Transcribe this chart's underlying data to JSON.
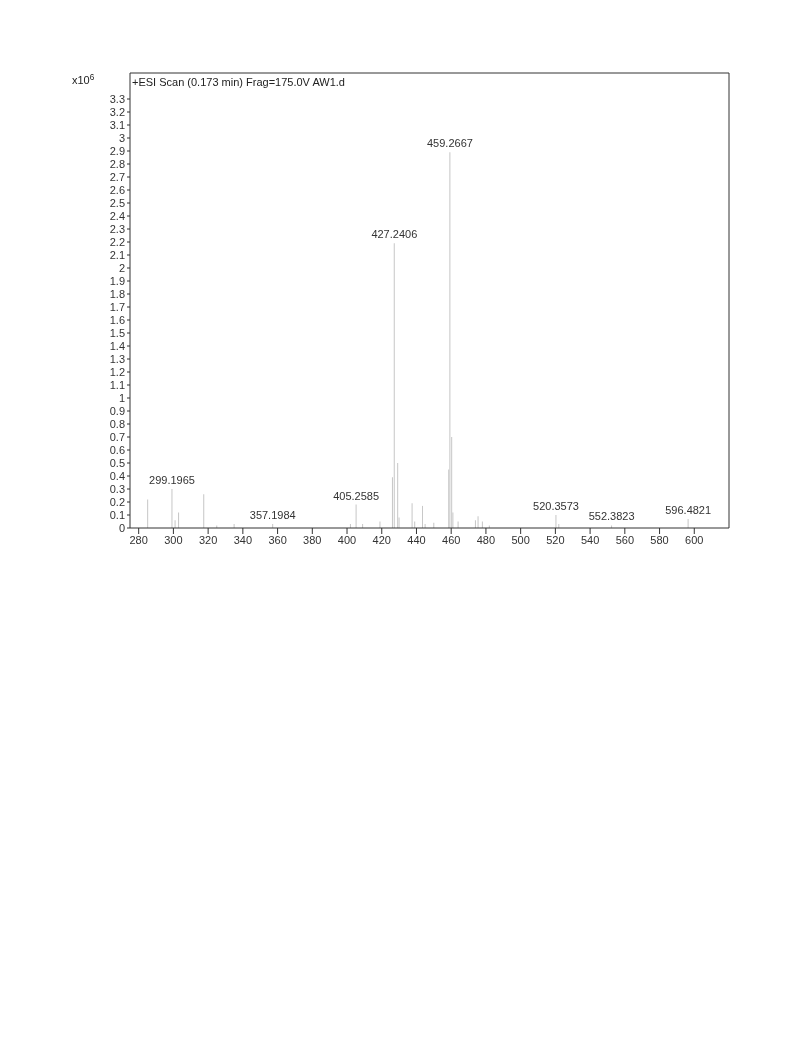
{
  "chart_data": {
    "type": "bar",
    "title": "+ESI Scan (0.173 min) Frag=175.0V AW1.d",
    "ylabel": "x10$^{6}$",
    "x": [
      285.2,
      299.1965,
      301,
      303,
      317.5,
      325,
      335,
      357.1984,
      402,
      405.2585,
      409,
      419,
      426.2,
      427.2406,
      429.2,
      430,
      437.5,
      439,
      443.5,
      445,
      450,
      458.6,
      459.2667,
      460.3,
      461,
      464,
      474,
      475.5,
      478,
      482,
      520.3573,
      522,
      552.3823,
      596.4821
    ],
    "values": [
      0.22,
      0.3,
      0.06,
      0.12,
      0.26,
      0.02,
      0.03,
      0.03,
      0.03,
      0.18,
      0.03,
      0.05,
      0.39,
      2.19,
      0.5,
      0.08,
      0.19,
      0.05,
      0.17,
      0.03,
      0.04,
      0.45,
      2.89,
      0.7,
      0.12,
      0.05,
      0.06,
      0.09,
      0.05,
      0.02,
      0.1,
      0.03,
      0.02,
      0.07
    ],
    "annotations": [
      {
        "text": "299.1965",
        "x": 299.1965,
        "y": 0.3
      },
      {
        "text": "357.1984",
        "x": 357.1984,
        "y": 0.03
      },
      {
        "text": "405.2585",
        "x": 405.2585,
        "y": 0.18
      },
      {
        "text": "427.2406",
        "x": 427.2406,
        "y": 2.19
      },
      {
        "text": "459.2667",
        "x": 459.2667,
        "y": 2.89
      },
      {
        "text": "520.3573",
        "x": 520.3573,
        "y": 0.1
      },
      {
        "text": "552.3823",
        "x": 552.3823,
        "y": 0.02
      },
      {
        "text": "596.4821",
        "x": 596.4821,
        "y": 0.07
      }
    ],
    "color": "#c8c8c8",
    "xlim": [
      275,
      620
    ],
    "xticks": [
      280,
      300,
      320,
      340,
      360,
      380,
      400,
      420,
      440,
      460,
      480,
      500,
      520,
      540,
      560,
      580,
      600
    ],
    "ylim": [
      0,
      3.5
    ],
    "yticks": [
      0,
      0.1,
      0.2,
      0.3,
      0.4,
      0.5,
      0.6,
      0.7,
      0.8,
      0.9,
      1,
      1.1,
      1.2,
      1.3,
      1.4,
      1.5,
      1.6,
      1.7,
      1.8,
      1.9,
      2,
      2.1,
      2.2,
      2.3,
      2.4,
      2.5,
      2.6,
      2.7,
      2.8,
      2.9,
      3,
      3.1,
      3.2,
      3.3
    ],
    "grid": false,
    "legend": false
  }
}
